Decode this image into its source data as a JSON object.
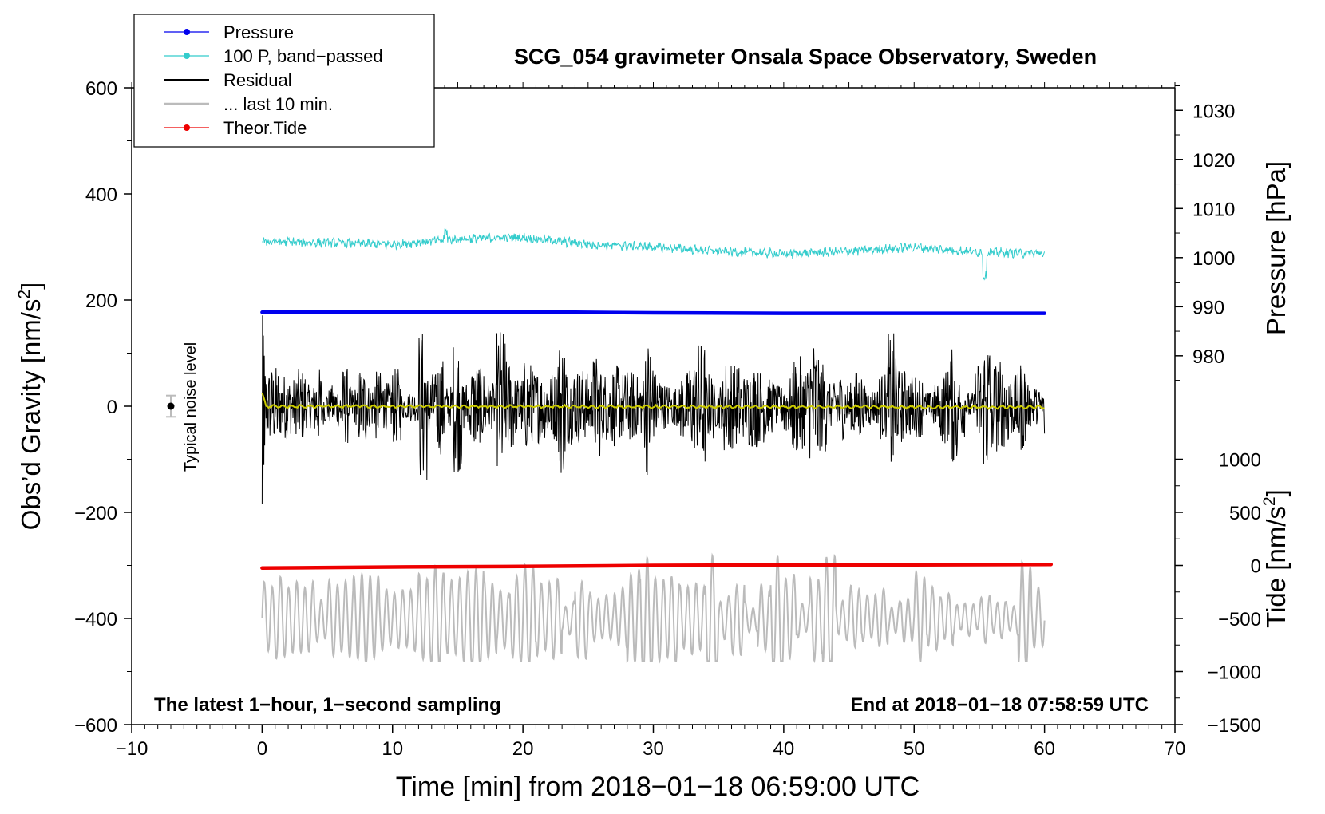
{
  "chart_data": {
    "type": "line",
    "title": "SCG_054 gravimeter Onsala Space Observatory, Sweden",
    "xlabel": "Time [min] from 2018−01−18 06:59:00 UTC",
    "ylabel_left_main": "Obs’d Gravity [nm/s",
    "ylabel_left_sup": "2",
    "ylabel_left_close": "]",
    "ylabel_right_pressure": "Pressure [hPa]",
    "ylabel_right_tide_main": "Tide [nm/s",
    "ylabel_right_tide_sup": "2",
    "ylabel_right_tide_close": "]",
    "xlim": [
      -10,
      70
    ],
    "ylim": [
      -600,
      600
    ],
    "x_ticks": [
      -10,
      0,
      10,
      20,
      30,
      40,
      50,
      60,
      70
    ],
    "x_tick_labels": [
      "−10",
      "0",
      "10",
      "20",
      "30",
      "40",
      "50",
      "60",
      "70"
    ],
    "y_ticks": [
      600,
      400,
      200,
      0,
      -200,
      -400,
      -600
    ],
    "y_tick_labels": [
      "600",
      "400",
      "200",
      "0",
      "−200",
      "−400",
      "−600"
    ],
    "pressure_axis": {
      "ylim": [
        980,
        1030
      ],
      "ticks": [
        980,
        990,
        1000,
        1010,
        1020,
        1030
      ],
      "tick_labels": [
        "980",
        "990",
        "1000",
        "1010",
        "1020",
        "1030"
      ],
      "anchor_value": 980,
      "anchor_gravity": 95,
      "units_per_tick": 10,
      "gravity_per_tick": 92.5
    },
    "tide_axis": {
      "ticks": [
        1000,
        500,
        0,
        -500,
        -1000,
        -1500
      ],
      "tick_labels": [
        "1000",
        "500",
        "0",
        "−500",
        "−1000",
        "−1500"
      ],
      "zero_gravity": -300,
      "gravity_per_500": 100
    },
    "legend": [
      {
        "label": "Pressure",
        "color": "#0000ee",
        "marker": true
      },
      {
        "label": "100 P, band−passed",
        "color": "#33cccc",
        "marker": true
      },
      {
        "label": "Residual",
        "color": "#000000",
        "marker": false
      },
      {
        "label": "... last 10 min.",
        "color": "#bbbbbb",
        "marker": false
      },
      {
        "label": "Theor.Tide",
        "color": "#ee0000",
        "marker": true
      }
    ],
    "legend_position": "top-left",
    "annotations": {
      "left": "The latest 1−hour, 1−second sampling",
      "right": "End at 2018−01−18 07:58:59 UTC",
      "noise": "Typical noise level"
    },
    "noise_marker": {
      "x": -7,
      "y": 0,
      "error": 20
    },
    "series": [
      {
        "name": "Pressure",
        "color": "#0000ee",
        "x": [
          0,
          10,
          20,
          24,
          30,
          40,
          50,
          60
        ],
        "y": [
          177,
          177,
          177,
          177,
          176,
          175,
          175,
          175
        ]
      },
      {
        "name": "100 P, band-passed",
        "color": "#33cccc",
        "x": [
          0,
          5,
          10,
          15,
          20,
          25,
          30,
          35,
          40,
          45,
          50,
          55,
          60
        ],
        "y": [
          310,
          308,
          305,
          315,
          318,
          305,
          300,
          292,
          287,
          292,
          300,
          290,
          288
        ]
      },
      {
        "name": "Residual",
        "color": "#000000",
        "x": [
          0,
          60
        ],
        "y": [
          0,
          0
        ],
        "amplitude_range": [
          -185,
          190
        ]
      },
      {
        "name": "... last 10 min.",
        "color": "#bbbbbb",
        "x": [
          0,
          60
        ],
        "y": [
          -400,
          -400
        ],
        "amplitude_range": [
          -480,
          -255
        ]
      },
      {
        "name": "Theor.Tide",
        "color": "#ee0000",
        "x": [
          0,
          10,
          20,
          30,
          40,
          50,
          60.5
        ],
        "y": [
          -305,
          -303,
          -302,
          -300,
          -299,
          -299,
          -298
        ]
      },
      {
        "name": "Smoothed residual",
        "color": "#cccc00",
        "x": [
          0,
          0.3,
          60
        ],
        "y": [
          25,
          0,
          -2
        ]
      }
    ]
  }
}
